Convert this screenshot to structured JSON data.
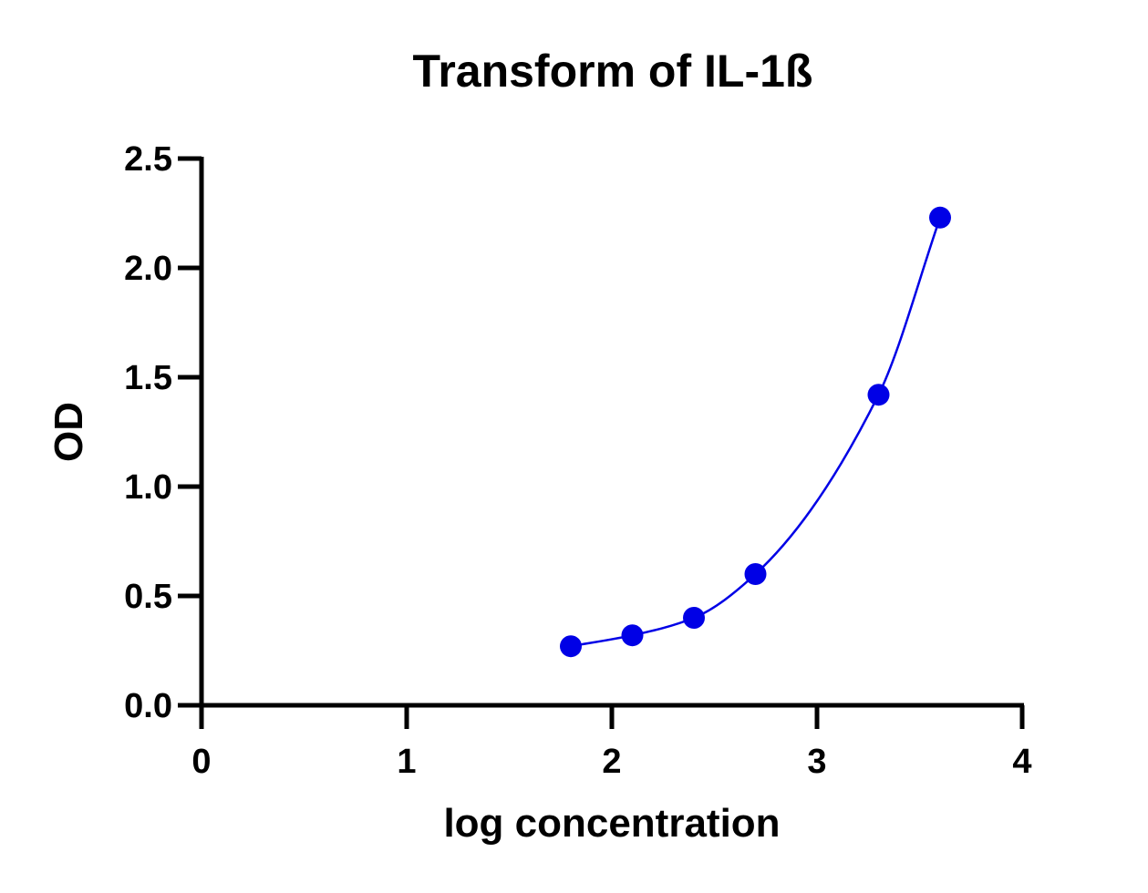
{
  "chart_data": {
    "type": "scatter",
    "title": "Transform of IL-1ß",
    "xlabel": "log concentration",
    "ylabel": "OD",
    "xlim": [
      0,
      4
    ],
    "ylim": [
      0,
      2.5
    ],
    "x_ticks": [
      0,
      1,
      2,
      3,
      4
    ],
    "x_tick_labels": [
      "0",
      "1",
      "2",
      "3",
      "4"
    ],
    "y_ticks": [
      0,
      0.5,
      1.0,
      1.5,
      2.0,
      2.5
    ],
    "y_tick_labels": [
      "0.0",
      "0.5",
      "1.0",
      "1.5",
      "2.0",
      "2.5"
    ],
    "grid": false,
    "series": [
      {
        "color": "#0000e6",
        "x": [
          1.8,
          2.1,
          2.4,
          2.7,
          3.3,
          3.6
        ],
        "y": [
          0.27,
          0.32,
          0.4,
          0.6,
          1.42,
          2.23
        ],
        "fit_curve": true
      }
    ]
  }
}
